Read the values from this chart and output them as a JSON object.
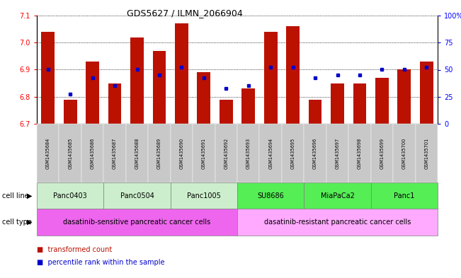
{
  "title": "GDS5627 / ILMN_2066904",
  "samples": [
    "GSM1435684",
    "GSM1435685",
    "GSM1435686",
    "GSM1435687",
    "GSM1435688",
    "GSM1435689",
    "GSM1435690",
    "GSM1435691",
    "GSM1435692",
    "GSM1435693",
    "GSM1435694",
    "GSM1435695",
    "GSM1435696",
    "GSM1435697",
    "GSM1435698",
    "GSM1435699",
    "GSM1435700",
    "GSM1435701"
  ],
  "bar_values": [
    7.04,
    6.79,
    6.93,
    6.85,
    7.02,
    6.97,
    7.07,
    6.89,
    6.79,
    6.83,
    7.04,
    7.06,
    6.79,
    6.85,
    6.85,
    6.87,
    6.9,
    6.93
  ],
  "percentile_values": [
    6.9,
    6.81,
    6.87,
    6.84,
    6.9,
    6.88,
    6.91,
    6.87,
    6.83,
    6.84,
    6.91,
    6.91,
    6.87,
    6.88,
    6.88,
    6.9,
    6.9,
    6.91
  ],
  "ylim_left": [
    6.7,
    7.1
  ],
  "yticks_left": [
    6.7,
    6.8,
    6.9,
    7.0,
    7.1
  ],
  "yticks_right": [
    0,
    25,
    50,
    75,
    100
  ],
  "cell_lines": [
    {
      "label": "Panc0403",
      "start": 0,
      "end": 3,
      "color": "#cceecc"
    },
    {
      "label": "Panc0504",
      "start": 3,
      "end": 6,
      "color": "#cceecc"
    },
    {
      "label": "Panc1005",
      "start": 6,
      "end": 9,
      "color": "#cceecc"
    },
    {
      "label": "SU8686",
      "start": 9,
      "end": 12,
      "color": "#55ee55"
    },
    {
      "label": "MiaPaCa2",
      "start": 12,
      "end": 15,
      "color": "#55ee55"
    },
    {
      "label": "Panc1",
      "start": 15,
      "end": 18,
      "color": "#55ee55"
    }
  ],
  "cell_types": [
    {
      "label": "dasatinib-sensitive pancreatic cancer cells",
      "start": 0,
      "end": 9,
      "color": "#ee66ee"
    },
    {
      "label": "dasatinib-resistant pancreatic cancer cells",
      "start": 9,
      "end": 18,
      "color": "#ffaaff"
    }
  ],
  "bar_color": "#bb1100",
  "percentile_color": "#0000cc",
  "sample_col_color": "#c8c8c8"
}
